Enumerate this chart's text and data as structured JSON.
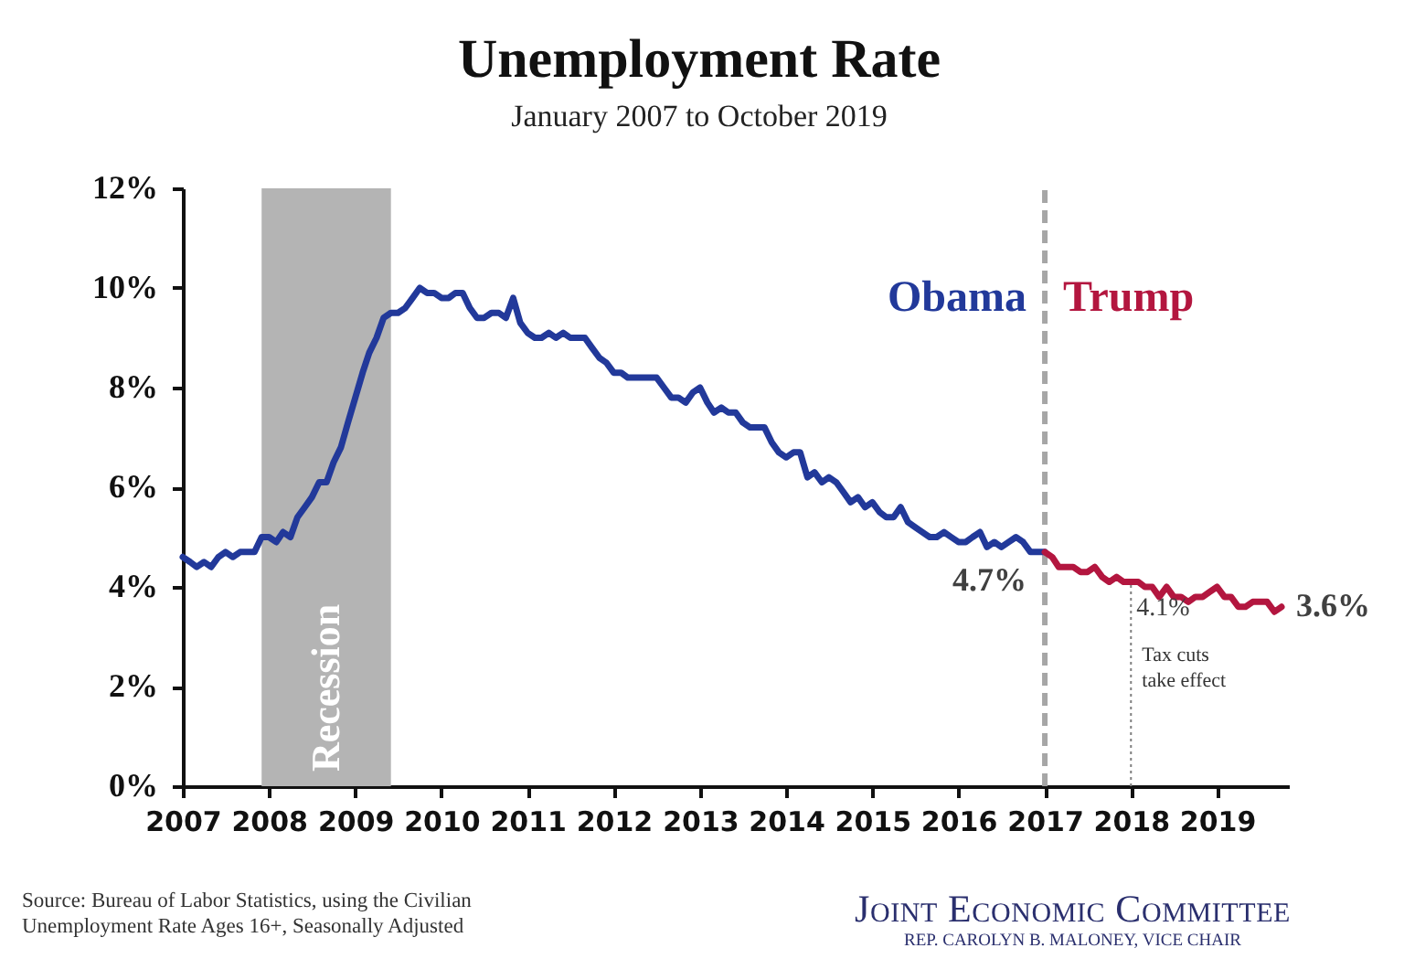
{
  "chart_data": {
    "type": "line",
    "title": "Unemployment Rate",
    "subtitle": "January 2007 to October 2019",
    "xlim": [
      "2007-01",
      "2019-11"
    ],
    "xticks": [
      "2007",
      "2008",
      "2009",
      "2010",
      "2011",
      "2012",
      "2013",
      "2014",
      "2015",
      "2016",
      "2017",
      "2018",
      "2019"
    ],
    "ylim": [
      0,
      12
    ],
    "yticks": [
      {
        "value": 0,
        "label": "0%"
      },
      {
        "value": 2,
        "label": "2%"
      },
      {
        "value": 4,
        "label": "4%"
      },
      {
        "value": 6,
        "label": "6%"
      },
      {
        "value": 8,
        "label": "8%"
      },
      {
        "value": 10,
        "label": "10%"
      },
      {
        "value": 12,
        "label": "12%"
      }
    ],
    "grid": false,
    "marker": "none",
    "line_style": "solid",
    "series": [
      {
        "name": "Obama",
        "color": "#22399a",
        "x": [
          "2007-01",
          "2007-02",
          "2007-03",
          "2007-04",
          "2007-05",
          "2007-06",
          "2007-07",
          "2007-08",
          "2007-09",
          "2007-10",
          "2007-11",
          "2007-12",
          "2008-01",
          "2008-02",
          "2008-03",
          "2008-04",
          "2008-05",
          "2008-06",
          "2008-07",
          "2008-08",
          "2008-09",
          "2008-10",
          "2008-11",
          "2008-12",
          "2009-01",
          "2009-02",
          "2009-03",
          "2009-04",
          "2009-05",
          "2009-06",
          "2009-07",
          "2009-08",
          "2009-09",
          "2009-10",
          "2009-11",
          "2009-12",
          "2010-01",
          "2010-02",
          "2010-03",
          "2010-04",
          "2010-05",
          "2010-06",
          "2010-07",
          "2010-08",
          "2010-09",
          "2010-10",
          "2010-11",
          "2010-12",
          "2011-01",
          "2011-02",
          "2011-03",
          "2011-04",
          "2011-05",
          "2011-06",
          "2011-07",
          "2011-08",
          "2011-09",
          "2011-10",
          "2011-11",
          "2011-12",
          "2012-01",
          "2012-02",
          "2012-03",
          "2012-04",
          "2012-05",
          "2012-06",
          "2012-07",
          "2012-08",
          "2012-09",
          "2012-10",
          "2012-11",
          "2012-12",
          "2013-01",
          "2013-02",
          "2013-03",
          "2013-04",
          "2013-05",
          "2013-06",
          "2013-07",
          "2013-08",
          "2013-09",
          "2013-10",
          "2013-11",
          "2013-12",
          "2014-01",
          "2014-02",
          "2014-03",
          "2014-04",
          "2014-05",
          "2014-06",
          "2014-07",
          "2014-08",
          "2014-09",
          "2014-10",
          "2014-11",
          "2014-12",
          "2015-01",
          "2015-02",
          "2015-03",
          "2015-04",
          "2015-05",
          "2015-06",
          "2015-07",
          "2015-08",
          "2015-09",
          "2015-10",
          "2015-11",
          "2015-12",
          "2016-01",
          "2016-02",
          "2016-03",
          "2016-04",
          "2016-05",
          "2016-06",
          "2016-07",
          "2016-08",
          "2016-09",
          "2016-10",
          "2016-11",
          "2016-12",
          "2017-01"
        ],
        "values": [
          4.6,
          4.5,
          4.4,
          4.5,
          4.4,
          4.6,
          4.7,
          4.6,
          4.7,
          4.7,
          4.7,
          5.0,
          5.0,
          4.9,
          5.1,
          5.0,
          5.4,
          5.6,
          5.8,
          6.1,
          6.1,
          6.5,
          6.8,
          7.3,
          7.8,
          8.3,
          8.7,
          9.0,
          9.4,
          9.5,
          9.5,
          9.6,
          9.8,
          10.0,
          9.9,
          9.9,
          9.8,
          9.8,
          9.9,
          9.9,
          9.6,
          9.4,
          9.4,
          9.5,
          9.5,
          9.4,
          9.8,
          9.3,
          9.1,
          9.0,
          9.0,
          9.1,
          9.0,
          9.1,
          9.0,
          9.0,
          9.0,
          8.8,
          8.6,
          8.5,
          8.3,
          8.3,
          8.2,
          8.2,
          8.2,
          8.2,
          8.2,
          8.0,
          7.8,
          7.8,
          7.7,
          7.9,
          8.0,
          7.7,
          7.5,
          7.6,
          7.5,
          7.5,
          7.3,
          7.2,
          7.2,
          7.2,
          6.9,
          6.7,
          6.6,
          6.7,
          6.7,
          6.2,
          6.3,
          6.1,
          6.2,
          6.1,
          5.9,
          5.7,
          5.8,
          5.6,
          5.7,
          5.5,
          5.4,
          5.4,
          5.6,
          5.3,
          5.2,
          5.1,
          5.0,
          5.0,
          5.1,
          5.0,
          4.9,
          4.9,
          5.0,
          5.1,
          4.8,
          4.9,
          4.8,
          4.9,
          5.0,
          4.9,
          4.7,
          4.7,
          4.7
        ]
      },
      {
        "name": "Trump",
        "color": "#b3163f",
        "x": [
          "2017-01",
          "2017-02",
          "2017-03",
          "2017-04",
          "2017-05",
          "2017-06",
          "2017-07",
          "2017-08",
          "2017-09",
          "2017-10",
          "2017-11",
          "2017-12",
          "2018-01",
          "2018-02",
          "2018-03",
          "2018-04",
          "2018-05",
          "2018-06",
          "2018-07",
          "2018-08",
          "2018-09",
          "2018-10",
          "2018-11",
          "2018-12",
          "2019-01",
          "2019-02",
          "2019-03",
          "2019-04",
          "2019-05",
          "2019-06",
          "2019-07",
          "2019-08",
          "2019-09",
          "2019-10"
        ],
        "values": [
          4.7,
          4.6,
          4.4,
          4.4,
          4.4,
          4.3,
          4.3,
          4.4,
          4.2,
          4.1,
          4.2,
          4.1,
          4.1,
          4.1,
          4.0,
          4.0,
          3.8,
          4.0,
          3.8,
          3.8,
          3.7,
          3.8,
          3.8,
          3.9,
          4.0,
          3.8,
          3.8,
          3.6,
          3.6,
          3.7,
          3.7,
          3.7,
          3.5,
          3.6
        ]
      }
    ],
    "bands": [
      {
        "axis": "x",
        "from": "2007-12",
        "to": "2009-06",
        "label": "Recession",
        "color": "#b4b4b4"
      }
    ],
    "ref_lines": [
      {
        "axis": "x",
        "value": "2017-01",
        "color": "#a6a6a6",
        "line_style": "dashed"
      },
      {
        "axis": "x",
        "value": "2018-01",
        "label": "Tax cuts take effect",
        "color": "#7f7f7f",
        "line_style": "dotted"
      }
    ],
    "annotations": [
      {
        "text": "4.7%",
        "x": "2017-01",
        "y": 4.7
      },
      {
        "text": "4.1%",
        "x": "2018-01",
        "y": 4.1
      },
      {
        "text": "3.6%",
        "x": "2019-10",
        "y": 3.6
      },
      "Source: Bureau of Labor Statistics, using the Civilian Unemployment Rate Ages 16+, Seasonally Adjusted",
      "Joint Economic Committee",
      "REP. CAROLYN B. MALONEY, VICE CHAIR"
    ]
  }
}
